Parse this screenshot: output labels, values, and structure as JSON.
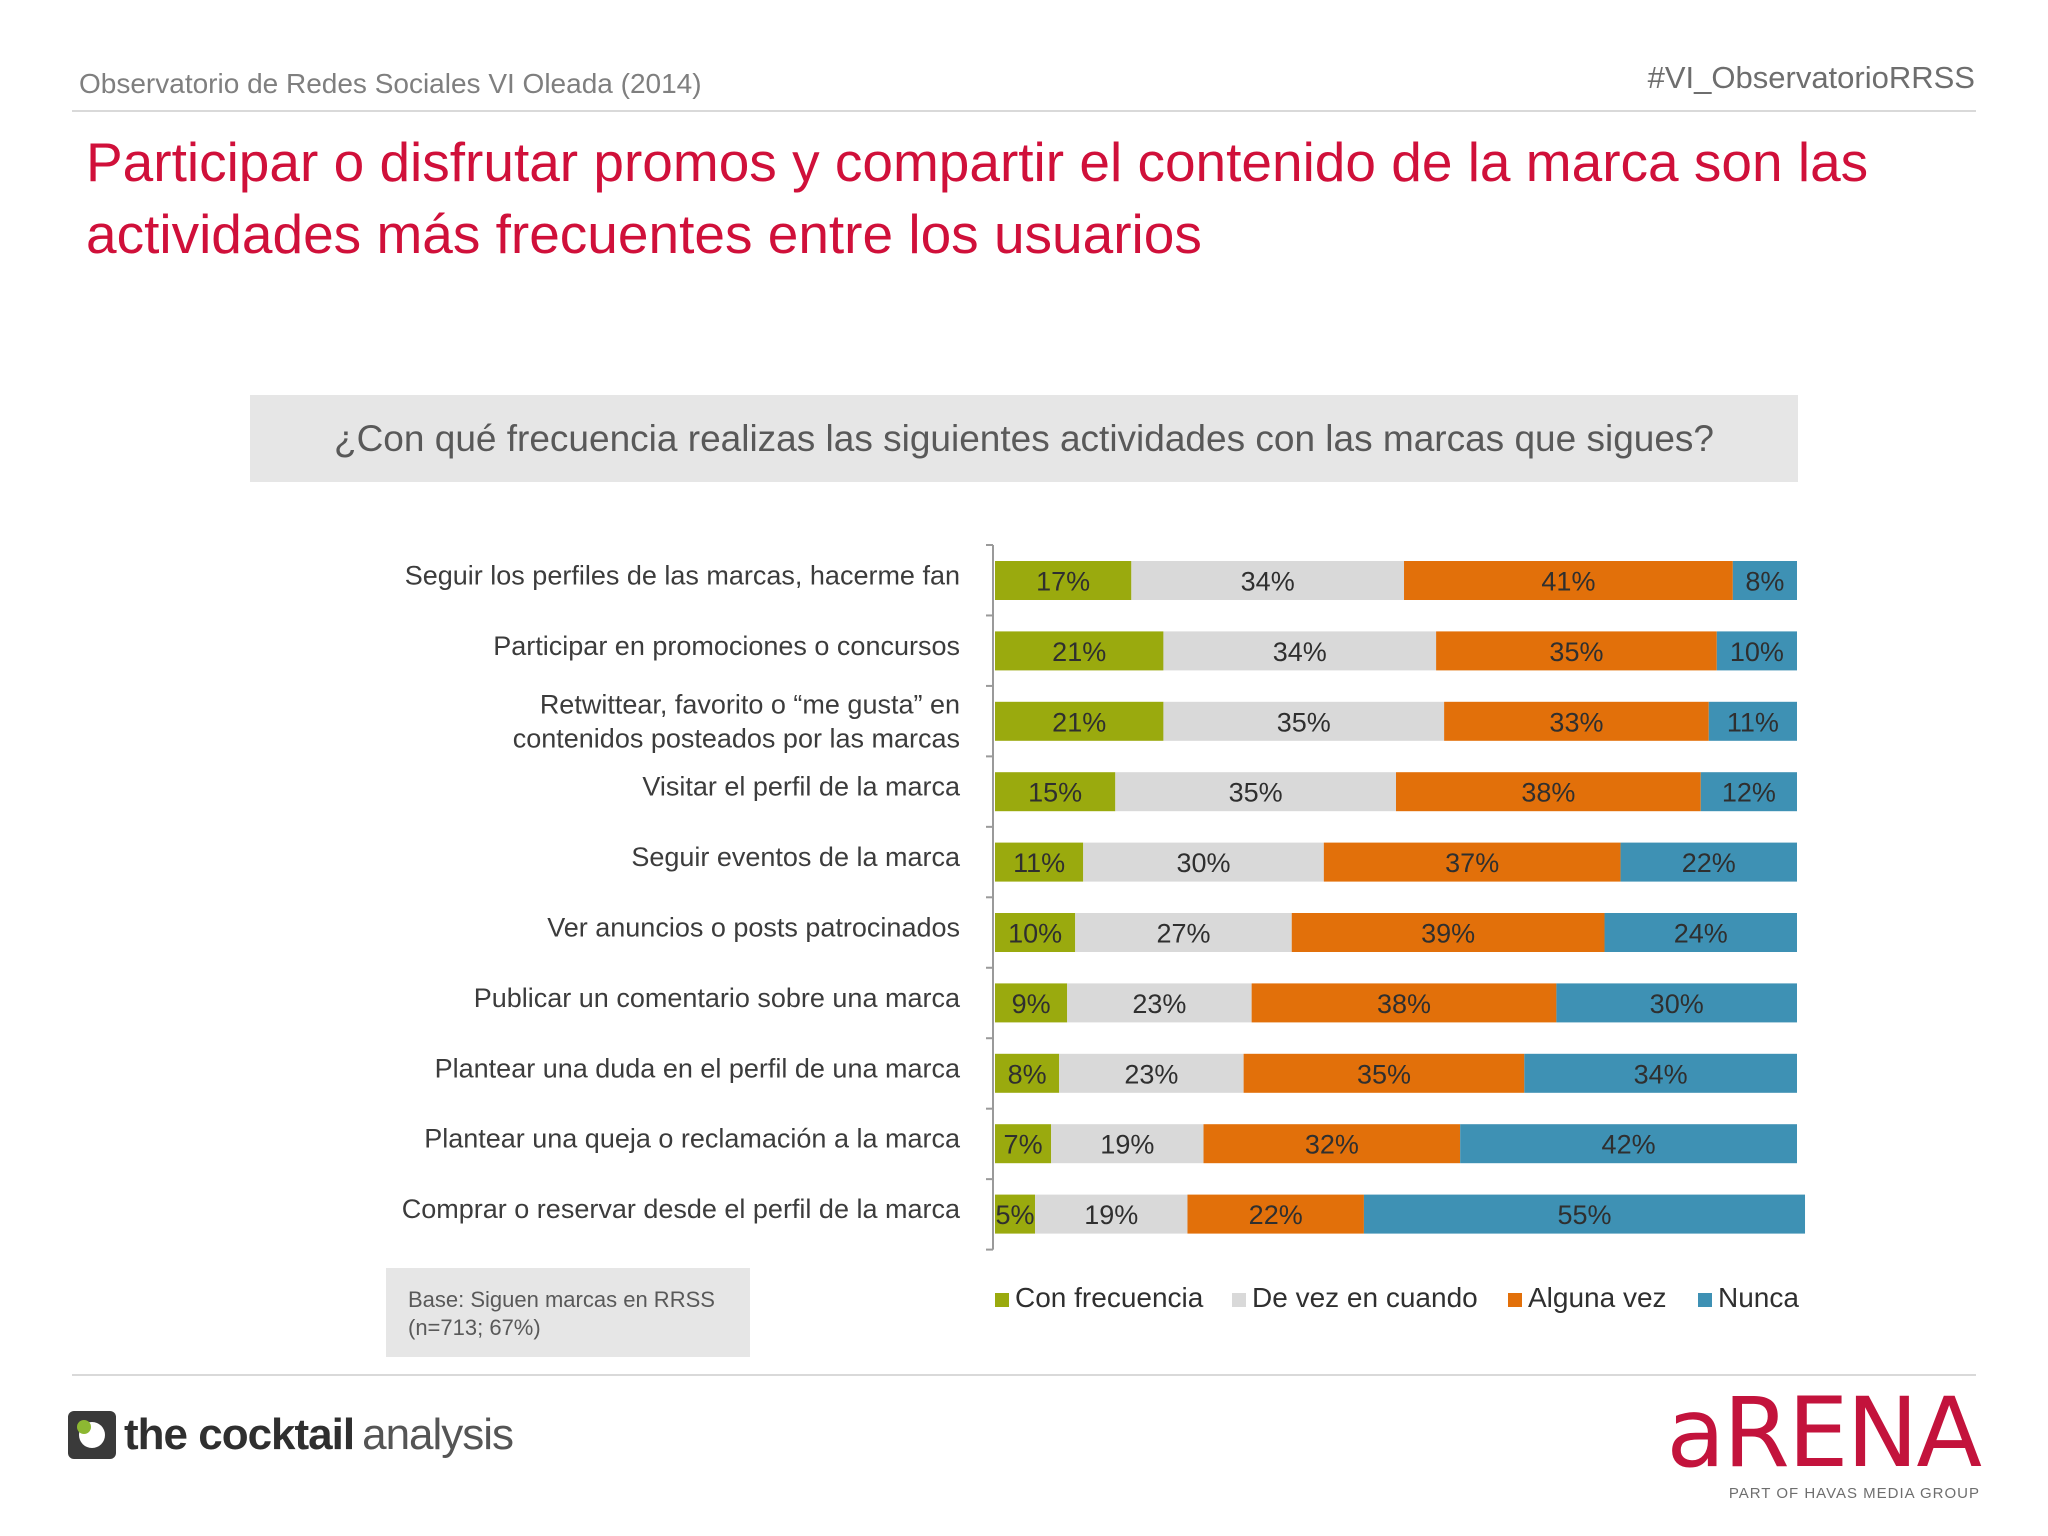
{
  "header": {
    "left": "Observatorio de Redes Sociales VI Oleada (2014)",
    "right": "#VI_ObservatorioRRSS"
  },
  "title_lines": [
    "Participar o disfrutar promos y compartir el contenido de la marca son las",
    "actividades más frecuentes entre los usuarios"
  ],
  "question": "¿Con qué frecuencia realizas las siguientes actividades con las marcas que sigues?",
  "base_note": {
    "line1": "Base: Siguen marcas en RRSS",
    "line2": "(n=713; 67%)"
  },
  "logos": {
    "left_bold": "the cocktail",
    "left_light": "analysis",
    "right_word": "aRENA",
    "right_sub": "PART OF HAVAS MEDIA GROUP"
  },
  "colors": {
    "title": "#d0103a",
    "series": [
      "#9aaa0e",
      "#d9d9d9",
      "#e2700a",
      "#3e91b4"
    ]
  },
  "chart_data": {
    "type": "bar",
    "orientation": "horizontal",
    "stacked": true,
    "value_format": "percent",
    "categories": [
      [
        "Seguir los perfiles de las marcas, hacerme fan"
      ],
      [
        "Participar en promociones o concursos"
      ],
      [
        "Retwittear, favorito o “me gusta” en",
        "contenidos posteados por las marcas"
      ],
      [
        "Visitar el perfil de la marca"
      ],
      [
        "Seguir eventos de la marca"
      ],
      [
        "Ver anuncios o posts patrocinados"
      ],
      [
        "Publicar un comentario sobre una marca"
      ],
      [
        "Plantear una duda en el perfil de una marca"
      ],
      [
        "Plantear una queja o reclamación a la marca"
      ],
      [
        "Comprar o reservar desde el perfil de la marca"
      ]
    ],
    "series": [
      {
        "name": "Con frecuencia",
        "values": [
          17,
          21,
          21,
          15,
          11,
          10,
          9,
          8,
          7,
          5
        ]
      },
      {
        "name": "De vez en cuando",
        "values": [
          34,
          34,
          35,
          35,
          30,
          27,
          23,
          23,
          19,
          19
        ]
      },
      {
        "name": "Alguna vez",
        "values": [
          41,
          35,
          33,
          38,
          37,
          39,
          38,
          35,
          32,
          22
        ]
      },
      {
        "name": "Nunca",
        "values": [
          8,
          10,
          11,
          12,
          22,
          24,
          30,
          34,
          42,
          55
        ]
      }
    ],
    "legend": "bottom",
    "xlim": [
      0,
      100
    ]
  }
}
